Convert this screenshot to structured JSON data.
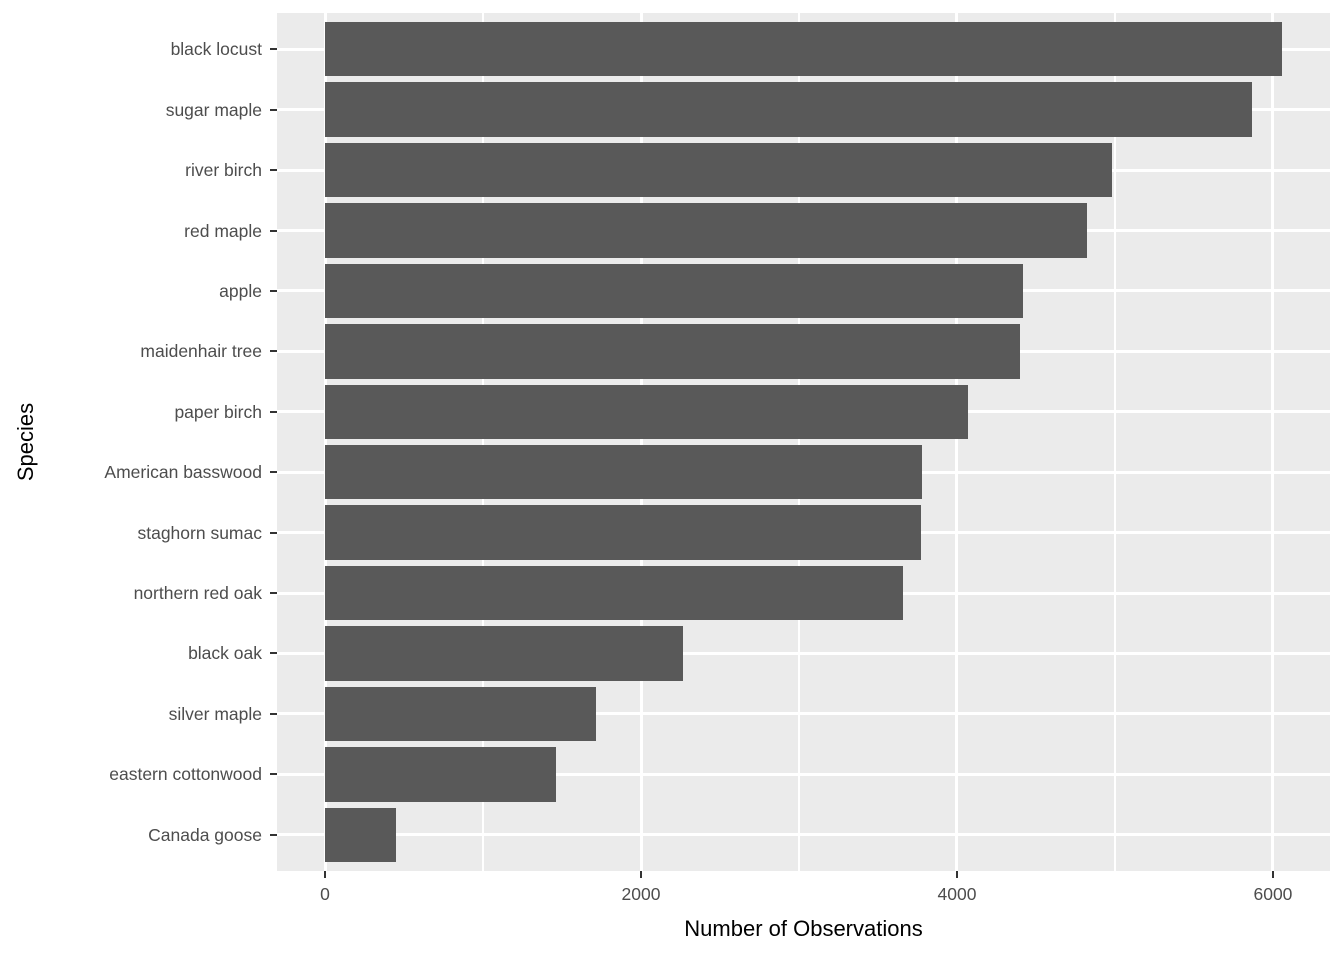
{
  "chart_data": {
    "type": "bar",
    "orientation": "horizontal",
    "title": "",
    "xlabel": "Number of Observations",
    "ylabel": "Species",
    "categories": [
      "black locust",
      "sugar maple",
      "river birch",
      "red maple",
      "apple",
      "maidenhair tree",
      "paper birch",
      "American basswood",
      "staghorn sumac",
      "northern red oak",
      "black oak",
      "silver maple",
      "eastern cottonwood",
      "Canada goose"
    ],
    "values": [
      6060,
      5870,
      4980,
      4820,
      4420,
      4400,
      4070,
      3780,
      3775,
      3660,
      2265,
      1715,
      1460,
      450
    ],
    "x_major_ticks": [
      0,
      2000,
      4000,
      6000
    ],
    "x_minor_ticks": [
      1000,
      3000,
      5000
    ],
    "xlim": [
      -304,
      6361
    ],
    "grid": "on",
    "legend": "none",
    "colors": {
      "bar_fill": "#595959",
      "panel_background": "#EBEBEB",
      "gridline": "#FFFFFF",
      "tick_label": "#4D4D4D",
      "tick_mark": "#333333",
      "axis_title": "#000000",
      "figure_background": "#FFFFFF"
    }
  }
}
